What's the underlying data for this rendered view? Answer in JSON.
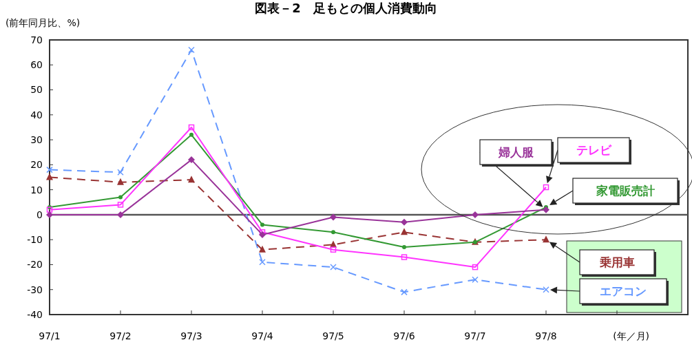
{
  "chart_data": {
    "type": "line",
    "title": "図表－2　足もとの個人消費動向",
    "ylabel": "(前年同月比、%)",
    "xlabel": "(年／月)",
    "categories": [
      "97/1",
      "97/2",
      "97/3",
      "97/4",
      "97/5",
      "97/6",
      "97/7",
      "97/8",
      null,
      null
    ],
    "ylim": [
      -40,
      70
    ],
    "yticks": [
      -40,
      -30,
      -20,
      -10,
      0,
      10,
      20,
      30,
      40,
      50,
      60,
      70
    ],
    "grid": false,
    "ref_lines": [
      {
        "axis": "y",
        "value": 0
      }
    ],
    "series": [
      {
        "name": "エアコン",
        "color": "#6699ff",
        "marker": "cross",
        "line_style": "dashed",
        "values": [
          18,
          17,
          66,
          -19,
          -21,
          -31,
          -26,
          -30,
          null,
          null
        ]
      },
      {
        "name": "乗用車",
        "color": "#993333",
        "marker": "triangle",
        "line_style": "dashed",
        "values": [
          15,
          13,
          14,
          -14,
          -12,
          -7,
          -11,
          -10,
          null,
          null
        ]
      },
      {
        "name": "家電販売計",
        "color": "#339933",
        "marker": "circle",
        "line_style": "solid",
        "values": [
          3,
          7,
          32,
          -4,
          -7,
          -13,
          -11,
          3,
          null,
          null
        ]
      },
      {
        "name": "テレビ",
        "color": "#ff33ff",
        "marker": "square",
        "line_style": "solid",
        "values": [
          2,
          4,
          35,
          -7,
          -14,
          -17,
          -21,
          11,
          null,
          null
        ]
      },
      {
        "name": "婦人服",
        "color": "#993399",
        "marker": "diamond",
        "line_style": "solid",
        "values": [
          0,
          0,
          22,
          -8,
          -1,
          -3,
          0,
          2,
          null,
          null
        ]
      }
    ]
  }
}
